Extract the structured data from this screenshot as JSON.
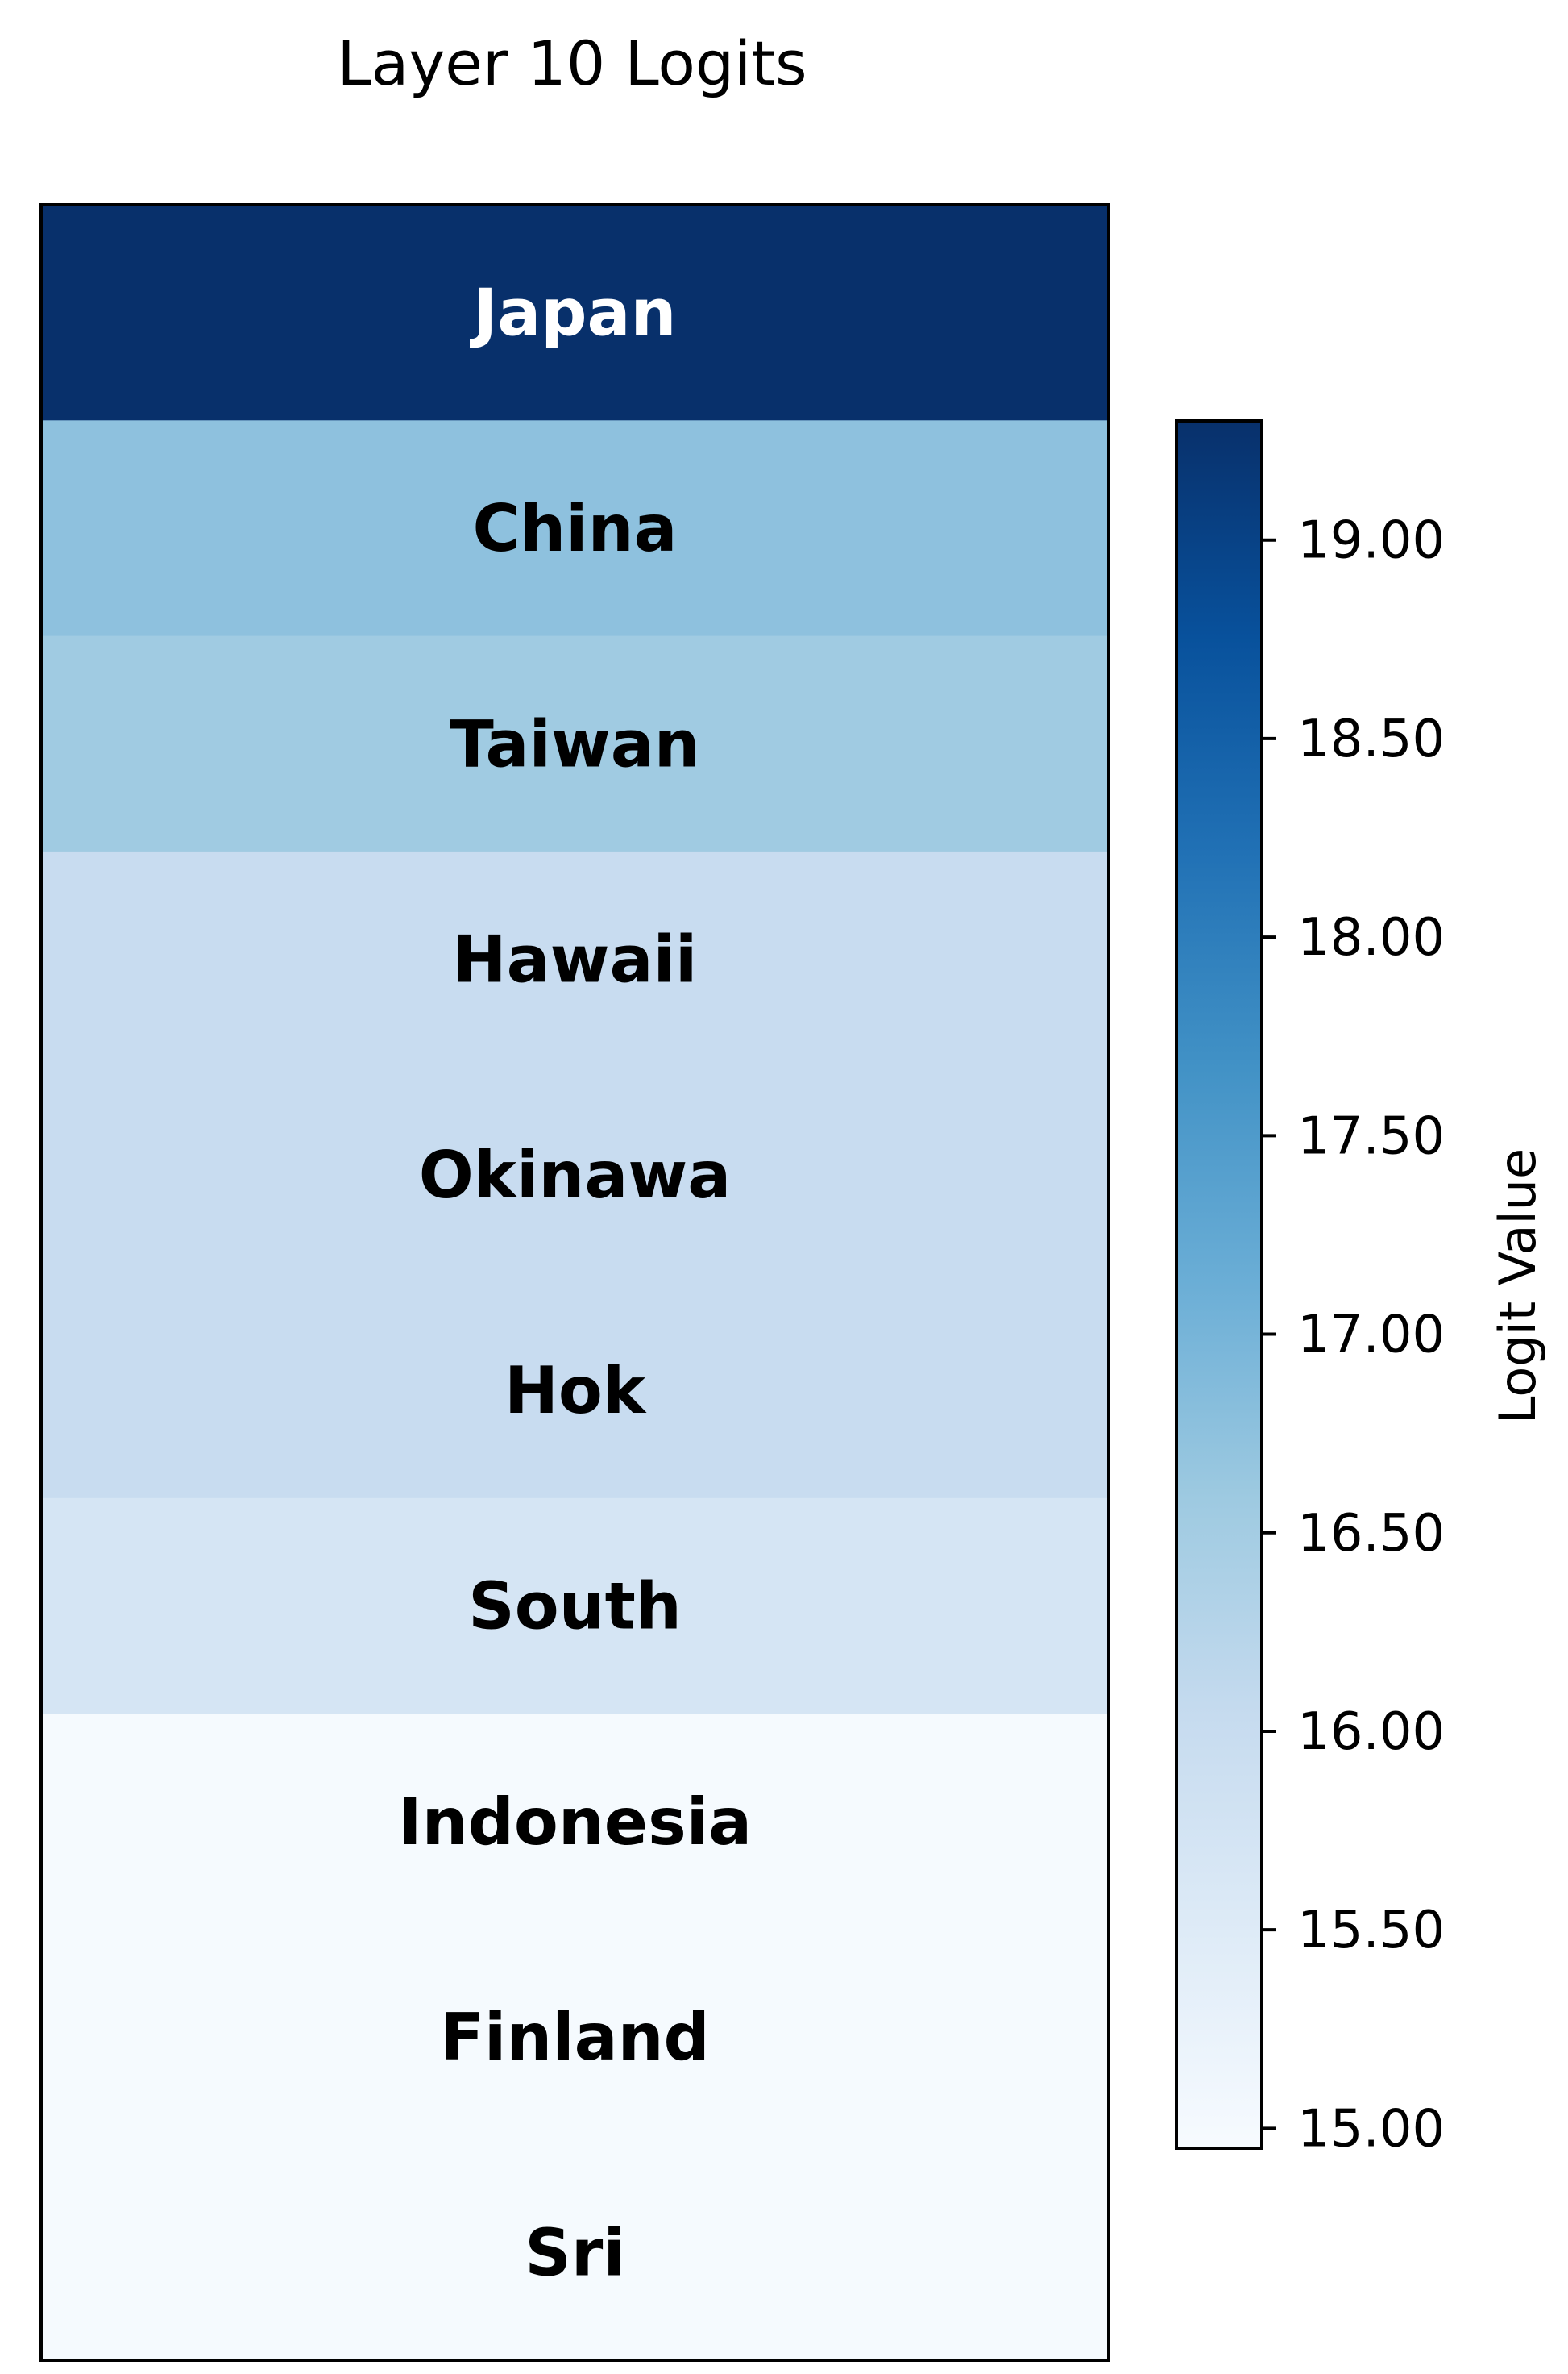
{
  "chart_data": {
    "type": "heatmap",
    "title": "Layer 10 Logits",
    "rows": [
      {
        "label": "Japan",
        "value": 19.3
      },
      {
        "label": "China",
        "value": 16.75
      },
      {
        "label": "Taiwan",
        "value": 16.55
      },
      {
        "label": "Hawaii",
        "value": 16.0
      },
      {
        "label": "Okinawa",
        "value": 16.0
      },
      {
        "label": "Hok",
        "value": 16.0
      },
      {
        "label": "South",
        "value": 15.7
      },
      {
        "label": "Indonesia",
        "value": 15.0
      },
      {
        "label": "Finland",
        "value": 15.0
      },
      {
        "label": "Sri",
        "value": 15.0
      }
    ],
    "colorbar": {
      "label": "Logit Value",
      "range": [
        14.95,
        19.3
      ],
      "ticks": [
        "15.00",
        "15.50",
        "16.00",
        "16.50",
        "17.00",
        "17.50",
        "18.00",
        "18.50",
        "19.00"
      ],
      "colormap": "Blues"
    }
  }
}
